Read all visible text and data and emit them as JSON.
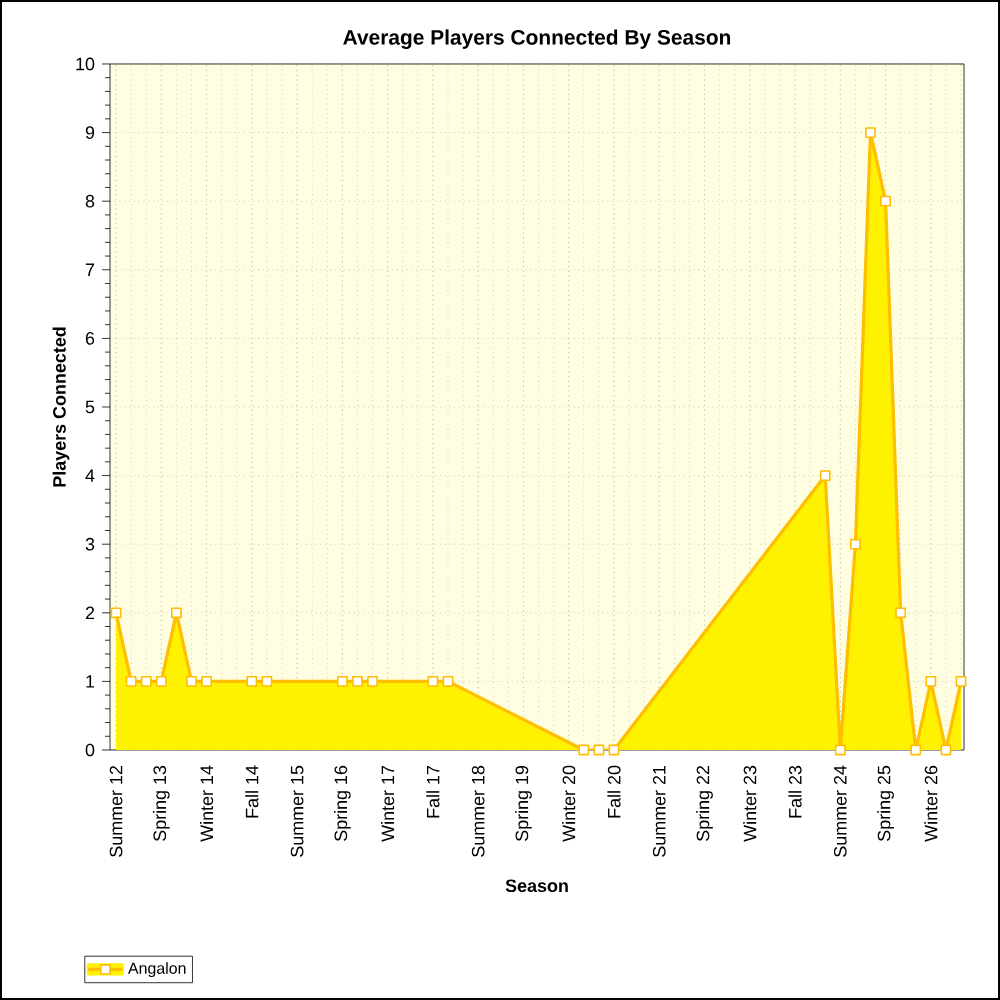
{
  "chart_data": {
    "type": "area",
    "title": "Average Players Connected By Season",
    "xlabel": "Season",
    "ylabel": "Players Connected",
    "ylim": [
      0,
      10
    ],
    "yticks": [
      0,
      1,
      2,
      3,
      4,
      5,
      6,
      7,
      8,
      9,
      10
    ],
    "categories": [
      "Summer 12",
      null,
      null,
      "Spring 13",
      null,
      null,
      "Winter 14",
      null,
      null,
      "Fall 14",
      null,
      null,
      "Summer 15",
      null,
      null,
      "Spring 16",
      null,
      null,
      "Winter 17",
      null,
      null,
      "Fall 17",
      null,
      null,
      "Summer 18",
      null,
      null,
      "Spring 19",
      null,
      null,
      "Winter 20",
      null,
      null,
      "Fall 20",
      null,
      null,
      "Summer 21",
      null,
      null,
      "Spring 22",
      null,
      null,
      "Winter 23",
      null,
      null,
      "Fall 23",
      null,
      null,
      "Summer 24",
      null,
      null,
      "Spring 25",
      null,
      null,
      "Winter 26",
      null,
      null
    ],
    "series": [
      {
        "name": "Angalon",
        "color": "#fff200",
        "values": [
          2,
          1,
          1,
          1,
          2,
          1,
          1,
          null,
          null,
          1,
          1,
          null,
          null,
          null,
          null,
          1,
          1,
          1,
          null,
          null,
          null,
          1,
          1,
          null,
          null,
          null,
          null,
          null,
          null,
          null,
          null,
          0,
          0,
          0,
          null,
          null,
          null,
          null,
          null,
          null,
          null,
          null,
          null,
          null,
          null,
          null,
          null,
          4,
          0,
          3,
          9,
          8,
          2,
          0,
          1,
          0,
          1
        ]
      }
    ],
    "grid": true,
    "legend": "bottom left",
    "marker": "square",
    "line_style": "solid"
  }
}
